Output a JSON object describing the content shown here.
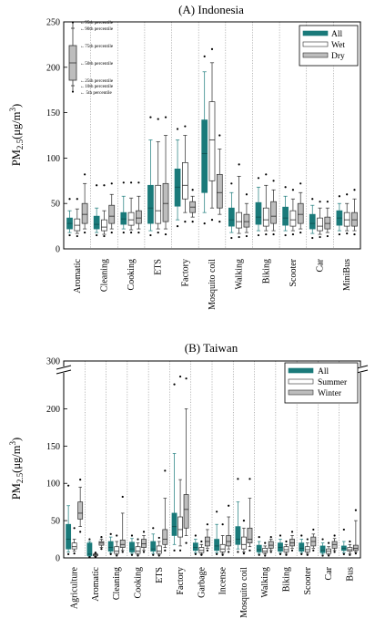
{
  "colors": {
    "all": "#1a7a7a",
    "wet_summer": "#ffffff",
    "dry_winter": "#bdbdbd",
    "stroke": "#2a2a2a",
    "divider": "#8a8a8a"
  },
  "chart_data": [
    {
      "type": "box",
      "title": "(A) Indonesia",
      "ylabel": {
        "main": "PM",
        "sub": "2.5",
        "unit_open": "(μg/m",
        "sup": "3",
        "unit_close": ")"
      },
      "ylim": [
        0,
        250
      ],
      "yticks": [
        "0",
        "50",
        "100",
        "150",
        "200",
        "250"
      ],
      "legend": {
        "position": "top-right",
        "entries": [
          "All",
          "Wet",
          "Dry"
        ]
      },
      "key": {
        "labels": [
          "←95th percentile",
          "←90th percentile",
          "←75th percentile",
          "←50th percentile",
          "←25th percentile",
          "←10th percentile",
          "←  5th percentile"
        ]
      },
      "categories": [
        "Aromatic",
        "Cleaning",
        "Cooking",
        "ETS",
        "Factory",
        "Mosquito coil",
        "Walking",
        "Biking",
        "Scooter",
        "Car",
        "MiniBus"
      ],
      "series": [
        {
          "name": "All",
          "boxes": [
            {
              "p5": 15,
              "p10": 18,
              "q1": 22,
              "med": 28,
              "q3": 34,
              "p90": 42,
              "p95": 55
            },
            {
              "p5": 15,
              "p10": 18,
              "q1": 22,
              "med": 27,
              "q3": 36,
              "p90": 45,
              "p95": 70
            },
            {
              "p5": 18,
              "p10": 22,
              "q1": 27,
              "med": 33,
              "q3": 40,
              "p90": 58,
              "p95": 73
            },
            {
              "p5": 15,
              "p10": 20,
              "q1": 28,
              "med": 45,
              "q3": 70,
              "p90": 120,
              "p95": 145
            },
            {
              "p5": 25,
              "p10": 32,
              "q1": 47,
              "med": 68,
              "q3": 88,
              "p90": 120,
              "p95": 132
            },
            {
              "p5": 28,
              "p10": 40,
              "q1": 62,
              "med": 105,
              "q3": 142,
              "p90": 195,
              "p95": 212
            },
            {
              "p5": 12,
              "p10": 18,
              "q1": 25,
              "med": 32,
              "q3": 45,
              "p90": 62,
              "p95": 72
            },
            {
              "p5": 15,
              "p10": 20,
              "q1": 27,
              "med": 35,
              "q3": 51,
              "p90": 68,
              "p95": 78
            },
            {
              "p5": 15,
              "p10": 20,
              "q1": 26,
              "med": 34,
              "q3": 46,
              "p90": 58,
              "p95": 68
            },
            {
              "p5": 12,
              "p10": 17,
              "q1": 22,
              "med": 28,
              "q3": 38,
              "p90": 48,
              "p95": 55
            },
            {
              "p5": 16,
              "p10": 20,
              "q1": 26,
              "med": 34,
              "q3": 42,
              "p90": 50,
              "p95": 58
            }
          ]
        },
        {
          "name": "Wet",
          "boxes": [
            {
              "p5": 14,
              "p10": 17,
              "q1": 20,
              "med": 26,
              "q3": 33,
              "p90": 44,
              "p95": 55
            },
            {
              "p5": 14,
              "p10": 16,
              "q1": 20,
              "med": 24,
              "q3": 32,
              "p90": 42,
              "p95": 70
            },
            {
              "p5": 18,
              "p10": 21,
              "q1": 26,
              "med": 32,
              "q3": 40,
              "p90": 56,
              "p95": 73
            },
            {
              "p5": 18,
              "p10": 22,
              "q1": 28,
              "med": 42,
              "q3": 70,
              "p90": 118,
              "p95": 143
            },
            {
              "p5": 30,
              "p10": 40,
              "q1": 55,
              "med": 70,
              "q3": 95,
              "p90": 125,
              "p95": 135
            },
            {
              "p5": 32,
              "p10": 45,
              "q1": 75,
              "med": 120,
              "q3": 162,
              "p90": 205,
              "p95": 220
            },
            {
              "p5": 13,
              "p10": 17,
              "q1": 23,
              "med": 30,
              "q3": 40,
              "p90": 80,
              "p95": 93
            },
            {
              "p5": 16,
              "p10": 20,
              "q1": 25,
              "med": 32,
              "q3": 45,
              "p90": 70,
              "p95": 82
            },
            {
              "p5": 16,
              "p10": 20,
              "q1": 25,
              "med": 32,
              "q3": 42,
              "p90": 55,
              "p95": 65
            },
            {
              "p5": 13,
              "p10": 16,
              "q1": 20,
              "med": 25,
              "q3": 34,
              "p90": 45,
              "p95": 52
            },
            {
              "p5": 17,
              "p10": 20,
              "q1": 25,
              "med": 32,
              "q3": 40,
              "p90": 50,
              "p95": 60
            }
          ]
        },
        {
          "name": "Dry",
          "boxes": [
            {
              "p5": 18,
              "p10": 22,
              "q1": 28,
              "med": 38,
              "q3": 50,
              "p90": 72,
              "p95": 82
            },
            {
              "p5": 18,
              "p10": 22,
              "q1": 28,
              "med": 36,
              "q3": 48,
              "p90": 60,
              "p95": 72
            },
            {
              "p5": 18,
              "p10": 22,
              "q1": 28,
              "med": 34,
              "q3": 42,
              "p90": 58,
              "p95": 73
            },
            {
              "p5": 16,
              "p10": 22,
              "q1": 30,
              "med": 50,
              "q3": 72,
              "p90": 125,
              "p95": 145
            },
            {
              "p5": 30,
              "p10": 35,
              "q1": 40,
              "med": 46,
              "q3": 52,
              "p90": 58,
              "p95": 65
            },
            {
              "p5": 30,
              "p10": 38,
              "q1": 45,
              "med": 62,
              "q3": 82,
              "p90": 110,
              "p95": 125
            },
            {
              "p5": 14,
              "p10": 18,
              "q1": 24,
              "med": 30,
              "q3": 38,
              "p90": 50,
              "p95": 60
            },
            {
              "p5": 16,
              "p10": 20,
              "q1": 28,
              "med": 36,
              "q3": 52,
              "p90": 65,
              "p95": 75
            },
            {
              "p5": 18,
              "p10": 22,
              "q1": 28,
              "med": 38,
              "q3": 50,
              "p90": 62,
              "p95": 72
            },
            {
              "p5": 14,
              "p10": 18,
              "q1": 22,
              "med": 28,
              "q3": 35,
              "p90": 45,
              "p95": 52
            },
            {
              "p5": 16,
              "p10": 20,
              "q1": 25,
              "med": 32,
              "q3": 40,
              "p90": 55,
              "p95": 65
            }
          ]
        }
      ]
    },
    {
      "type": "box",
      "title": "(B) Taiwan",
      "ylabel": {
        "main": "PM",
        "sub": "2.5",
        "unit_open": "(μg/m",
        "sup": "3",
        "unit_close": ")"
      },
      "ylim": [
        0,
        300
      ],
      "y_axis_break": [
        225,
        290
      ],
      "yticks": [
        "0",
        "50",
        "100",
        "150",
        "200",
        "300"
      ],
      "legend": {
        "position": "top-right",
        "entries": [
          "All",
          "Summer",
          "Winter"
        ]
      },
      "categories": [
        "Agriculture",
        "Aromatic",
        "Cleaning",
        "Cooking",
        "ETS",
        "Factory",
        "Garbage",
        "Incense",
        "Mosquito coil",
        "Walking",
        "Biking",
        "Scooter",
        "Car",
        "Bus"
      ],
      "series": [
        {
          "name": "All",
          "boxes": [
            {
              "p5": 5,
              "p10": 8,
              "q1": 12,
              "med": 25,
              "q3": 45,
              "p90": 70,
              "p95": 97
            },
            {
              "p5": 1,
              "p10": 2,
              "q1": 3,
              "med": 5,
              "q3": 20,
              "p90": 22,
              "p95": 25
            },
            {
              "p5": 5,
              "p10": 7,
              "q1": 9,
              "med": 14,
              "q3": 22,
              "p90": 28,
              "p95": 32
            },
            {
              "p5": 4,
              "p10": 6,
              "q1": 8,
              "med": 12,
              "q3": 21,
              "p90": 26,
              "p95": 30
            },
            {
              "p5": 4,
              "p10": 6,
              "q1": 9,
              "med": 12,
              "q3": 22,
              "p90": 32,
              "p95": 40
            },
            {
              "p5": 10,
              "p10": 18,
              "q1": 30,
              "med": 42,
              "q3": 60,
              "p90": 140,
              "p95": 240
            },
            {
              "p5": 5,
              "p10": 7,
              "q1": 10,
              "med": 14,
              "q3": 20,
              "p90": 25,
              "p95": 30
            },
            {
              "p5": 5,
              "p10": 7,
              "q1": 10,
              "med": 16,
              "q3": 25,
              "p90": 45,
              "p95": 62
            },
            {
              "p5": 8,
              "p10": 12,
              "q1": 18,
              "med": 25,
              "q3": 42,
              "p90": 75,
              "p95": 106
            },
            {
              "p5": 4,
              "p10": 6,
              "q1": 8,
              "med": 11,
              "q3": 17,
              "p90": 22,
              "p95": 28
            },
            {
              "p5": 5,
              "p10": 7,
              "q1": 9,
              "med": 14,
              "q3": 20,
              "p90": 25,
              "p95": 30
            },
            {
              "p5": 5,
              "p10": 7,
              "q1": 9,
              "med": 13,
              "q3": 20,
              "p90": 25,
              "p95": 30
            },
            {
              "p5": 3,
              "p10": 5,
              "q1": 7,
              "med": 10,
              "q3": 16,
              "p90": 20,
              "p95": 25
            },
            {
              "p5": 5,
              "p10": 7,
              "q1": 10,
              "med": 13,
              "q3": 16,
              "p90": 22,
              "p95": 38
            }
          ]
        },
        {
          "name": "Summer",
          "boxes": [
            {
              "p5": 6,
              "p10": 9,
              "q1": 12,
              "med": 15,
              "q3": 20,
              "p90": 25,
              "p95": 40
            },
            {
              "p5": 1,
              "p10": 2,
              "q1": 3,
              "med": 4,
              "q3": 5,
              "p90": 6,
              "p95": 7
            },
            {
              "p5": 3,
              "p10": 4,
              "q1": 6,
              "med": 9,
              "q3": 15,
              "p90": 22,
              "p95": 30
            },
            {
              "p5": 3,
              "p10": 4,
              "q1": 6,
              "med": 9,
              "q3": 15,
              "p90": 20,
              "p95": 25
            },
            {
              "p5": 3,
              "p10": 4,
              "q1": 6,
              "med": 9,
              "q3": 16,
              "p90": 22,
              "p95": 27
            },
            {
              "p5": 10,
              "p10": 16,
              "q1": 28,
              "med": 38,
              "q3": 55,
              "p90": 105,
              "p95": 260
            },
            {
              "p5": 4,
              "p10": 5,
              "q1": 7,
              "med": 10,
              "q3": 14,
              "p90": 18,
              "p95": 22
            },
            {
              "p5": 4,
              "p10": 6,
              "q1": 8,
              "med": 12,
              "q3": 18,
              "p90": 30,
              "p95": 45
            },
            {
              "p5": 6,
              "p10": 8,
              "q1": 12,
              "med": 18,
              "q3": 28,
              "p90": 40,
              "p95": 50
            },
            {
              "p5": 3,
              "p10": 5,
              "q1": 7,
              "med": 9,
              "q3": 13,
              "p90": 16,
              "p95": 20
            },
            {
              "p5": 4,
              "p10": 6,
              "q1": 8,
              "med": 11,
              "q3": 15,
              "p90": 18,
              "p95": 22
            },
            {
              "p5": 4,
              "p10": 6,
              "q1": 8,
              "med": 11,
              "q3": 15,
              "p90": 20,
              "p95": 25
            },
            {
              "p5": 3,
              "p10": 4,
              "q1": 6,
              "med": 9,
              "q3": 12,
              "p90": 15,
              "p95": 20
            },
            {
              "p5": 4,
              "p10": 6,
              "q1": 9,
              "med": 11,
              "q3": 14,
              "p90": 18,
              "p95": 22
            }
          ]
        },
        {
          "name": "Winter",
          "boxes": [
            {
              "p5": 35,
              "p10": 42,
              "q1": 52,
              "med": 60,
              "q3": 75,
              "p90": 95,
              "p95": 105
            },
            {
              "p5": 12,
              "p10": 14,
              "q1": 17,
              "med": 20,
              "q3": 22,
              "p90": 25,
              "p95": 28
            },
            {
              "p5": 8,
              "p10": 10,
              "q1": 14,
              "med": 18,
              "q3": 24,
              "p90": 60,
              "p95": 82
            },
            {
              "p5": 8,
              "p10": 10,
              "q1": 14,
              "med": 19,
              "q3": 25,
              "p90": 30,
              "p95": 35
            },
            {
              "p5": 10,
              "p10": 14,
              "q1": 18,
              "med": 25,
              "q3": 38,
              "p90": 80,
              "p95": 117
            },
            {
              "p5": 20,
              "p10": 30,
              "q1": 40,
              "med": 65,
              "q3": 85,
              "p90": 200,
              "p95": 255
            },
            {
              "p5": 10,
              "p10": 13,
              "q1": 16,
              "med": 22,
              "q3": 28,
              "p90": 38,
              "p95": 45
            },
            {
              "p5": 8,
              "p10": 12,
              "q1": 16,
              "med": 22,
              "q3": 30,
              "p90": 55,
              "p95": 70
            },
            {
              "p5": 10,
              "p10": 15,
              "q1": 20,
              "med": 25,
              "q3": 40,
              "p90": 80,
              "p95": 106
            },
            {
              "p5": 8,
              "p10": 10,
              "q1": 13,
              "med": 17,
              "q3": 22,
              "p90": 25,
              "p95": 28
            },
            {
              "p5": 10,
              "p10": 13,
              "q1": 16,
              "med": 20,
              "q3": 25,
              "p90": 30,
              "p95": 35
            },
            {
              "p5": 10,
              "p10": 13,
              "q1": 16,
              "med": 22,
              "q3": 28,
              "p90": 32,
              "p95": 38
            },
            {
              "p5": 8,
              "p10": 10,
              "q1": 13,
              "med": 18,
              "q3": 22,
              "p90": 26,
              "p95": 30
            },
            {
              "p5": 6,
              "p10": 8,
              "q1": 10,
              "med": 13,
              "q3": 17,
              "p90": 50,
              "p95": 64
            }
          ]
        }
      ]
    }
  ]
}
